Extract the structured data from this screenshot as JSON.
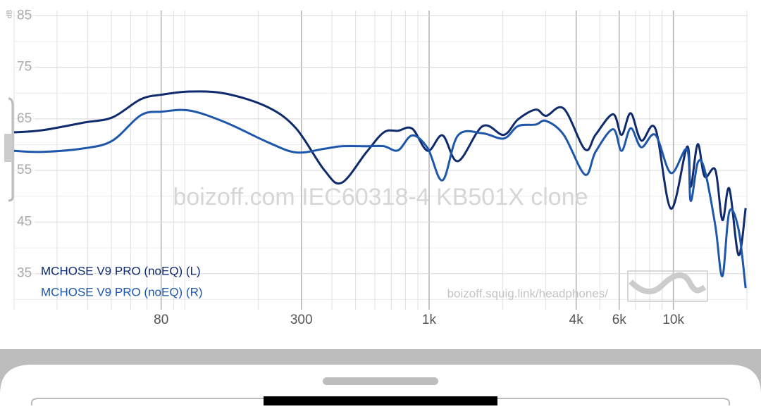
{
  "chart_data": {
    "type": "line",
    "y_unit": "dB",
    "watermark": "boizoff.com IEC60318-4 KB501X clone",
    "source": "boizoff.squig.link/headphones/",
    "log_x": true,
    "xlim": [
      20,
      20000
    ],
    "ylim": [
      28,
      86
    ],
    "xticks": [
      80,
      300,
      {
        "value": 1000,
        "label": "1k"
      },
      {
        "value": 4000,
        "label": "4k"
      },
      {
        "value": 6000,
        "label": "6k"
      },
      {
        "value": 10000,
        "label": "10k"
      }
    ],
    "yticks": [
      35,
      45,
      55,
      65,
      75,
      85
    ],
    "xgrid": [
      20,
      30,
      40,
      50,
      60,
      70,
      80,
      90,
      100,
      200,
      300,
      400,
      500,
      600,
      700,
      800,
      900,
      1000,
      2000,
      3000,
      4000,
      5000,
      6000,
      7000,
      8000,
      9000,
      10000,
      20000
    ],
    "ygrid": [
      30,
      35,
      40,
      45,
      50,
      55,
      60,
      65,
      70,
      75,
      80,
      85
    ],
    "x": [
      20,
      26.1,
      38.8,
      50.6,
      66,
      80.6,
      105,
      147,
      218,
      285,
      372,
      438,
      553,
      653,
      746,
      853,
      987,
      1135,
      1313,
      1656,
      2022,
      2311,
      2730,
      3013,
      3559,
      4345,
      4800,
      5663,
      6138,
      6690,
      7390,
      8440,
      9770,
      11380,
      11770,
      12580,
      13430,
      14850,
      15870,
      16940,
      18480,
      19760
    ],
    "series": [
      {
        "name": "MCHOSE V9 PRO (noEQ) (L)",
        "color": "#102a6e",
        "values": [
          62.4,
          62.8,
          64.3,
          65.3,
          68.8,
          69.7,
          70.3,
          69.9,
          67.3,
          63.2,
          55.1,
          52.6,
          58.5,
          62.4,
          62.7,
          63.1,
          58.8,
          61.8,
          56.8,
          63.6,
          61.9,
          64.9,
          66.8,
          65.6,
          67.0,
          59.1,
          61.9,
          65.9,
          61.9,
          66.1,
          60.8,
          63.1,
          47.6,
          59.6,
          51.8,
          60.1,
          53.8,
          55.1,
          45.4,
          51.5,
          38.6,
          47.7
        ]
      },
      {
        "name": "MCHOSE V9 PRO (noEQ) (R)",
        "color": "#1e57aa",
        "values": [
          58.8,
          58.6,
          59.3,
          60.8,
          65.7,
          66.4,
          66.6,
          64.3,
          60.5,
          58.5,
          59.2,
          59.7,
          59.7,
          59.7,
          58.9,
          61.8,
          59.3,
          53.1,
          61.8,
          62.2,
          61.2,
          63.6,
          63.9,
          64.6,
          61.9,
          54.2,
          58.6,
          63.0,
          58.8,
          63.2,
          59.5,
          61.9,
          54.5,
          59.1,
          49.1,
          56.5,
          55.1,
          44.3,
          34.5,
          47.0,
          43.6,
          32.2
        ]
      }
    ]
  }
}
